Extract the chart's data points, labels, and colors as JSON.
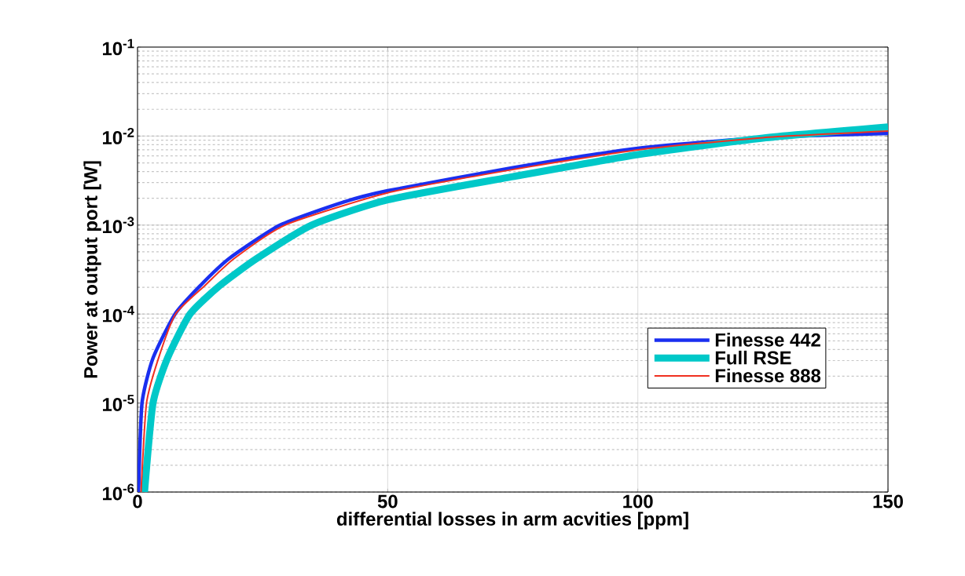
{
  "chart_data": {
    "type": "line",
    "xlabel": "differential losses in arm acvities [ppm]",
    "ylabel": "Power at output port [W]",
    "log": "y",
    "grid": true,
    "legend": "bottom right",
    "line_style": "solid",
    "marker": "none",
    "xlim": [
      0,
      150
    ],
    "xticks": [
      0,
      50,
      100,
      150
    ],
    "ylim": [
      1e-06,
      0.1
    ],
    "yticks": [
      {
        "value": 1e-06,
        "label": "10$^{-6}$"
      },
      {
        "value": 1e-05,
        "label": "10$^{-5}$"
      },
      {
        "value": 0.0001,
        "label": "10$^{-4}$"
      },
      {
        "value": 0.001,
        "label": "10$^{-3}$"
      },
      {
        "value": 0.01,
        "label": "10$^{-2}$"
      },
      {
        "value": 0.1,
        "label": "10$^{-1}$"
      }
    ],
    "series": [
      {
        "name": "Finesse 442",
        "color": "#1a2ff0",
        "x": [
          0.2,
          0.9,
          3.1,
          7.5,
          12.6,
          18.3,
          28.5,
          41,
          50,
          75,
          100,
          125,
          150
        ],
        "values": [
          1e-06,
          1e-05,
          3.2e-05,
          0.0001,
          0.00021,
          0.00042,
          0.001,
          0.0018,
          0.00243,
          0.0044,
          0.0073,
          0.0096,
          0.0107
        ]
      },
      {
        "name": "Full RSE",
        "color": "#00c8c8",
        "x": [
          1.4,
          3.1,
          6.0,
          10.5,
          16.5,
          23.8,
          34.8,
          50,
          75,
          100,
          125,
          150
        ],
        "values": [
          1e-06,
          1e-05,
          3.2e-05,
          0.0001,
          0.00021,
          0.00042,
          0.001,
          0.00192,
          0.0035,
          0.0062,
          0.0095,
          0.0127
        ]
      },
      {
        "name": "Finesse 888",
        "color": "#f03020",
        "x": [
          0.7,
          1.8,
          4.2,
          7.6,
          13.5,
          19.3,
          29.5,
          50,
          75,
          100,
          125,
          150
        ],
        "values": [
          1e-06,
          1e-05,
          3.2e-05,
          0.0001,
          0.00021,
          0.00042,
          0.001,
          0.0023,
          0.0042,
          0.007,
          0.0096,
          0.0114
        ]
      }
    ]
  }
}
